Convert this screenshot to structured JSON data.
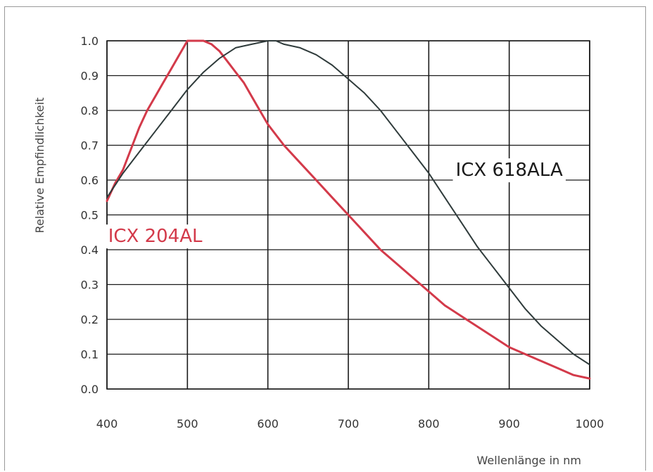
{
  "chart_data": {
    "type": "line",
    "title": "",
    "xlabel": "Wellenlänge in nm",
    "ylabel": "Relative Empfindlichkeit",
    "xlim": [
      400,
      1000
    ],
    "ylim": [
      0.0,
      1.0
    ],
    "xticks": [
      "400",
      "500",
      "600",
      "700",
      "800",
      "900",
      "1000"
    ],
    "yticks": [
      "0.0",
      "0.1",
      "0.2",
      "0.3",
      "0.4",
      "0.5",
      "0.6",
      "0.7",
      "0.8",
      "0.9",
      "1.0"
    ],
    "grid": true,
    "series": [
      {
        "name": "ICX 204AL",
        "color": "#d33a4a",
        "x": [
          400,
          410,
          420,
          430,
          440,
          450,
          460,
          470,
          480,
          490,
          500,
          510,
          520,
          530,
          540,
          550,
          560,
          570,
          580,
          590,
          600,
          620,
          640,
          660,
          680,
          700,
          720,
          740,
          760,
          780,
          800,
          820,
          840,
          860,
          880,
          900,
          920,
          940,
          960,
          980,
          1000
        ],
        "y": [
          0.54,
          0.59,
          0.63,
          0.69,
          0.75,
          0.8,
          0.84,
          0.88,
          0.92,
          0.96,
          1.0,
          1.0,
          1.0,
          0.99,
          0.97,
          0.94,
          0.91,
          0.88,
          0.84,
          0.8,
          0.76,
          0.7,
          0.65,
          0.6,
          0.55,
          0.5,
          0.45,
          0.4,
          0.36,
          0.32,
          0.28,
          0.24,
          0.21,
          0.18,
          0.15,
          0.12,
          0.1,
          0.08,
          0.06,
          0.04,
          0.03
        ]
      },
      {
        "name": "ICX 618ALA",
        "color": "#2f3b3b",
        "x": [
          400,
          420,
          440,
          460,
          480,
          500,
          520,
          540,
          560,
          580,
          600,
          610,
          620,
          640,
          660,
          680,
          700,
          720,
          740,
          760,
          780,
          800,
          820,
          840,
          860,
          880,
          900,
          920,
          940,
          960,
          980,
          1000
        ],
        "y": [
          0.55,
          0.62,
          0.68,
          0.74,
          0.8,
          0.86,
          0.91,
          0.95,
          0.98,
          0.99,
          1.0,
          1.0,
          0.99,
          0.98,
          0.96,
          0.93,
          0.89,
          0.85,
          0.8,
          0.74,
          0.68,
          0.62,
          0.55,
          0.48,
          0.41,
          0.35,
          0.29,
          0.23,
          0.18,
          0.14,
          0.1,
          0.07
        ]
      }
    ],
    "annotations": [
      {
        "text": "ICX 204AL",
        "color": "#d33a4a",
        "x": 460,
        "y": 0.44
      },
      {
        "text": "ICX 618ALA",
        "color": "#1a1a1a",
        "x": 900,
        "y": 0.63
      }
    ]
  }
}
